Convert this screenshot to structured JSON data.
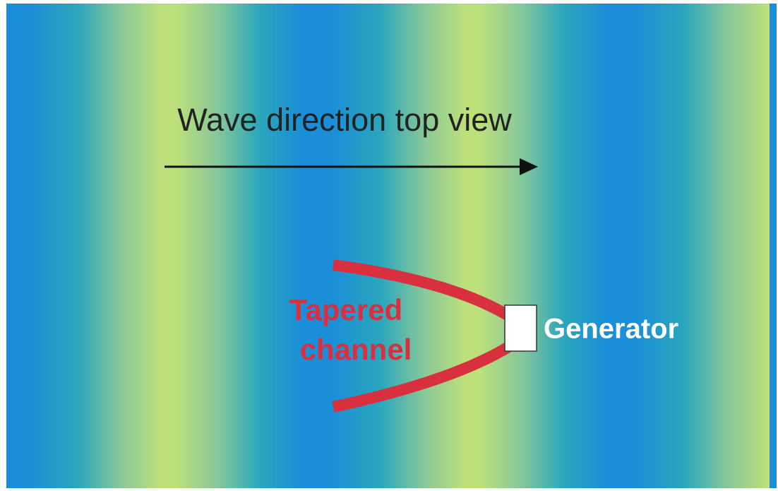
{
  "wave_label": "Wave direction top view",
  "channel_label": {
    "line1": "Tapered",
    "line2": "channel"
  },
  "generator_label": "Generator"
}
